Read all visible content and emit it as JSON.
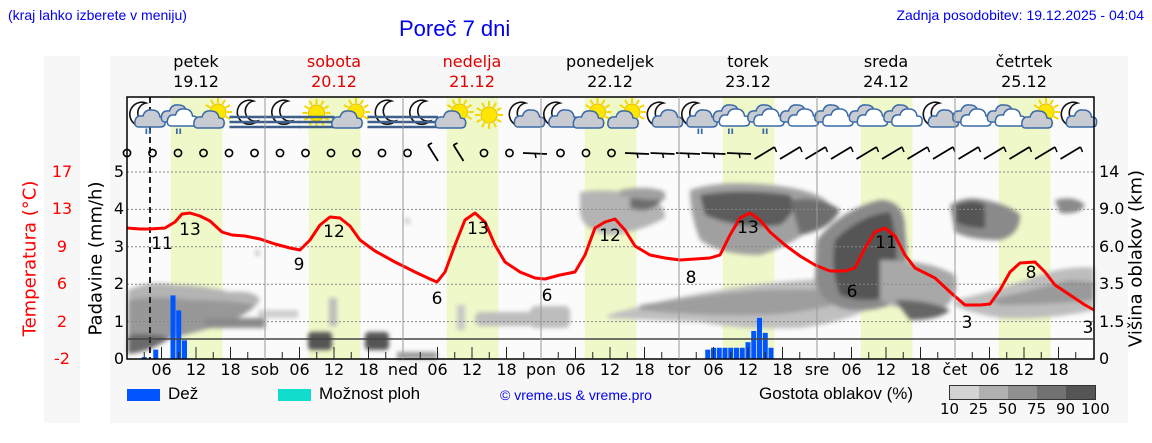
{
  "header": {
    "menu_hint": "(kraj lahko izberete v meniju)",
    "title": "Poreč 7 dni",
    "last_update": "Zadnja posodobitev: 19.12.2025 - 04:04"
  },
  "days": [
    {
      "name": "petek",
      "date": "19.12",
      "weekend": false
    },
    {
      "name": "sobota",
      "date": "20.12",
      "weekend": true
    },
    {
      "name": "nedelja",
      "date": "21.12",
      "weekend": true
    },
    {
      "name": "ponedeljek",
      "date": "22.12",
      "weekend": false
    },
    {
      "name": "torek",
      "date": "23.12",
      "weekend": false
    },
    {
      "name": "sreda",
      "date": "24.12",
      "weekend": false
    },
    {
      "name": "četrtek",
      "date": "25.12",
      "weekend": false
    }
  ],
  "axes": {
    "temp_label": "Temperatura (°C)",
    "temp_ticks": [
      "17",
      "13",
      "9",
      "6",
      "2",
      "-2"
    ],
    "precip_label": "Padavine (mm/h)",
    "precip_ticks": [
      "5",
      "4",
      "3",
      "2",
      "1",
      "0"
    ],
    "cloud_label": "Višina oblakov (km)",
    "cloud_ticks": [
      "14",
      "9.0",
      "6.0",
      "3.5",
      "1.5",
      "0"
    ],
    "x_ticks": [
      "06",
      "12",
      "18",
      "sob",
      "06",
      "12",
      "18",
      "ned",
      "06",
      "12",
      "18",
      "pon",
      "06",
      "12",
      "18",
      "tor",
      "06",
      "12",
      "18",
      "sre",
      "06",
      "12",
      "18",
      "čet",
      "06",
      "12",
      "18"
    ]
  },
  "legend": {
    "rain": "Dež",
    "showers": "Možnost ploh",
    "copyright": "© vreme.us & vreme.pro",
    "cloud_density": "Gostota oblakov (%)",
    "density_steps": [
      "10",
      "25",
      "50",
      "75",
      "90",
      "100"
    ]
  },
  "colors": {
    "rain": "#0055ff",
    "showers": "#11ddcc",
    "temp_line": "#ff0000",
    "day_highlight": "#eef8c8",
    "link": "#0000ee",
    "weekend": "#e00000"
  },
  "chart_data": {
    "type": "line+bar",
    "title": "Poreč 7 dni",
    "x_range": "19.12 00h – 25.12 24h (hourly)",
    "series": [
      {
        "name": "Temperatura (°C)",
        "type": "line",
        "labeled_points": [
          {
            "day": "petek",
            "hour": 4,
            "value": 11
          },
          {
            "day": "petek",
            "hour": 13,
            "value": 13
          },
          {
            "day": "sobota",
            "hour": 6,
            "value": 9
          },
          {
            "day": "sobota",
            "hour": 12,
            "value": 12
          },
          {
            "day": "nedelja",
            "hour": 6,
            "value": 6
          },
          {
            "day": "nedelja",
            "hour": 12,
            "value": 13
          },
          {
            "day": "ponedeljek",
            "hour": 1,
            "value": 6
          },
          {
            "day": "ponedeljek",
            "hour": 12,
            "value": 12
          },
          {
            "day": "ponedeljek",
            "hour": 22,
            "value": 8
          },
          {
            "day": "torek",
            "hour": 13,
            "value": 13
          },
          {
            "day": "sreda",
            "hour": 6,
            "value": 6
          },
          {
            "day": "sreda",
            "hour": 13,
            "value": 11
          },
          {
            "day": "četrtek",
            "hour": 2,
            "value": 3
          },
          {
            "day": "četrtek",
            "hour": 13,
            "value": 8
          },
          {
            "day": "četrtek",
            "hour": 24,
            "value": 3
          }
        ]
      },
      {
        "name": "Dež (mm/h)",
        "type": "bar",
        "points": [
          {
            "day": "petek",
            "hour": 3,
            "value": 0.05
          },
          {
            "day": "petek",
            "hour": 5,
            "value": 0.25
          },
          {
            "day": "petek",
            "hour": 8,
            "value": 1.7
          },
          {
            "day": "petek",
            "hour": 9,
            "value": 1.3
          },
          {
            "day": "petek",
            "hour": 10,
            "value": 0.5
          },
          {
            "day": "torek",
            "hour": 5,
            "value": 0.25
          },
          {
            "day": "torek",
            "hour": 6,
            "value": 0.3
          },
          {
            "day": "torek",
            "hour": 7,
            "value": 0.3
          },
          {
            "day": "torek",
            "hour": 8,
            "value": 0.3
          },
          {
            "day": "torek",
            "hour": 9,
            "value": 0.3
          },
          {
            "day": "torek",
            "hour": 10,
            "value": 0.3
          },
          {
            "day": "torek",
            "hour": 11,
            "value": 0.3
          },
          {
            "day": "torek",
            "hour": 12,
            "value": 0.45
          },
          {
            "day": "torek",
            "hour": 13,
            "value": 0.75
          },
          {
            "day": "torek",
            "hour": 14,
            "value": 1.1
          },
          {
            "day": "torek",
            "hour": 15,
            "value": 0.7
          },
          {
            "day": "torek",
            "hour": 16,
            "value": 0.3
          }
        ]
      }
    ],
    "xlabel": "",
    "ylabel_left": "Padavine (mm/h)",
    "ylabel_left_outer": "Temperatura (°C)",
    "ylabel_right": "Višina oblakov (km)",
    "ylim_precip": [
      0,
      5
    ],
    "ylim_temp": [
      -2,
      17
    ],
    "grid": true,
    "legend": [
      "Dež",
      "Možnost ploh",
      "Gostota oblakov (%)"
    ],
    "legend_position": "bottom"
  }
}
